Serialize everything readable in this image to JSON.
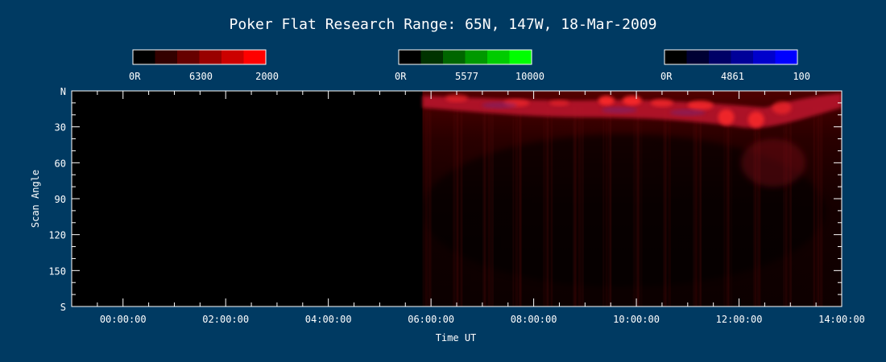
{
  "chart_data": {
    "type": "heatmap",
    "title": "Poker Flat Research Range: 65N, 147W, 18-Mar-2009",
    "xlabel": "Time UT",
    "ylabel": "Scan Angle",
    "x_tick_labels": [
      "00:00:00",
      "02:00:00",
      "04:00:00",
      "06:00:00",
      "08:00:00",
      "10:00:00",
      "12:00:00",
      "14:00:00"
    ],
    "y_tick_labels": [
      "N",
      "30",
      "60",
      "90",
      "120",
      "150",
      "S"
    ],
    "xlim": [
      "23:00:00",
      "14:00:00"
    ],
    "ylim": [
      0,
      180
    ],
    "data_start": "05:50:00",
    "colorbars": [
      {
        "wavelength": "6300",
        "min_label": "0R",
        "max_label": "2000",
        "colors": [
          "#000000",
          "#330000",
          "#660000",
          "#990000",
          "#cc0000",
          "#ff0000"
        ]
      },
      {
        "wavelength": "5577",
        "min_label": "0R",
        "max_label": "10000",
        "colors": [
          "#000000",
          "#003300",
          "#006600",
          "#009900",
          "#00cc00",
          "#00ff00"
        ]
      },
      {
        "wavelength": "4861",
        "min_label": "0R",
        "max_label": "100",
        "colors": [
          "#000000",
          "#000033",
          "#000066",
          "#000099",
          "#0000cc",
          "#0000ff"
        ]
      }
    ],
    "features": [
      {
        "name": "northern-red-arc",
        "series": "6300",
        "start": "05:50:00",
        "end": "13:30:00",
        "angle_band": [
          5,
          35
        ],
        "intensity": "high"
      },
      {
        "name": "diffuse-red-background",
        "series": "6300",
        "start": "05:50:00",
        "end": "14:00:00",
        "angle_band": [
          35,
          180
        ],
        "intensity": "low"
      }
    ]
  },
  "colors": {
    "background": "#003a62",
    "plot_area": "#000000",
    "axis": "#ffffff"
  }
}
